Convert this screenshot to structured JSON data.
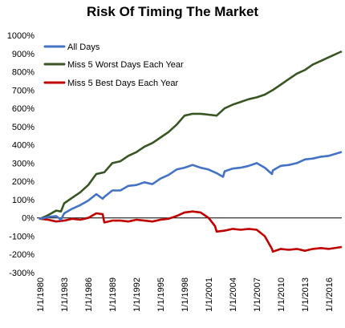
{
  "chart_data": {
    "type": "line",
    "title": "Risk Of Timing The Market",
    "xlabel": "",
    "ylabel": "",
    "ylim": [
      -300,
      1000
    ],
    "y_ticks": [
      -300,
      -200,
      -100,
      0,
      100,
      200,
      300,
      400,
      500,
      600,
      700,
      800,
      900,
      1000
    ],
    "y_tick_labels": [
      "-300%",
      "-200%",
      "-100%",
      "0%",
      "100%",
      "200%",
      "300%",
      "400%",
      "500%",
      "600%",
      "700%",
      "800%",
      "900%",
      "1000%"
    ],
    "x_tick_labels": [
      "1/1/1980",
      "1/1/1983",
      "1/1/1986",
      "1/1/1989",
      "1/1/1992",
      "1/1/1995",
      "1/1/1998",
      "1/1/2001",
      "1/1/2004",
      "1/1/2007",
      "1/1/2010",
      "1/1/2013",
      "1/1/2016"
    ],
    "xlim": [
      1980,
      2017.6
    ],
    "grid": false,
    "legend_position": "top-left",
    "series": [
      {
        "name": "All Days",
        "color": "#4472C4",
        "x": [
          1980,
          1981,
          1982,
          1982.6,
          1983,
          1984,
          1985,
          1986,
          1987,
          1987.8,
          1988,
          1989,
          1990,
          1991,
          1992,
          1993,
          1994,
          1995,
          1996,
          1997,
          1998,
          1999,
          2000,
          2001,
          2002,
          2002.8,
          2003,
          2004,
          2005,
          2006,
          2007,
          2008,
          2008.9,
          2009,
          2010,
          2011,
          2012,
          2013,
          2014,
          2015,
          2016,
          2017.5
        ],
        "y": [
          -5,
          5,
          10,
          -10,
          25,
          50,
          70,
          95,
          130,
          105,
          115,
          150,
          150,
          175,
          180,
          195,
          185,
          215,
          235,
          265,
          275,
          290,
          275,
          265,
          245,
          225,
          255,
          270,
          275,
          285,
          300,
          275,
          240,
          260,
          285,
          290,
          300,
          320,
          325,
          335,
          340,
          360
        ]
      },
      {
        "name": "Miss 5 Worst Days Each Year",
        "color": "#375623",
        "x": [
          1980,
          1981,
          1982,
          1982.6,
          1983,
          1984,
          1985,
          1986,
          1987,
          1988,
          1989,
          1990,
          1991,
          1992,
          1993,
          1994,
          1995,
          1996,
          1997,
          1998,
          1999,
          2000,
          2001,
          2002,
          2003,
          2004,
          2005,
          2006,
          2007,
          2008,
          2009,
          2010,
          2011,
          2012,
          2013,
          2014,
          2015,
          2016,
          2017.5
        ],
        "y": [
          -5,
          15,
          40,
          35,
          80,
          110,
          140,
          180,
          240,
          250,
          300,
          310,
          340,
          360,
          390,
          410,
          440,
          470,
          510,
          560,
          570,
          570,
          565,
          560,
          600,
          620,
          635,
          650,
          660,
          675,
          700,
          730,
          760,
          790,
          810,
          840,
          860,
          880,
          910
        ]
      },
      {
        "name": "Miss 5 Best Days Each Year",
        "color": "#C00000",
        "x": [
          1980,
          1981,
          1982,
          1983,
          1984,
          1985,
          1986,
          1987,
          1987.8,
          1988,
          1989,
          1990,
          1991,
          1992,
          1993,
          1994,
          1995,
          1996,
          1997,
          1998,
          1999,
          2000,
          2001,
          2001.8,
          2002,
          2003,
          2004,
          2005,
          2006,
          2007,
          2008,
          2008.9,
          2009,
          2010,
          2011,
          2012,
          2013,
          2014,
          2015,
          2016,
          2017.5
        ],
        "y": [
          -5,
          -10,
          -20,
          -15,
          -5,
          -10,
          0,
          25,
          20,
          -25,
          -15,
          -15,
          -20,
          -10,
          -15,
          -20,
          -10,
          -5,
          10,
          30,
          35,
          30,
          0,
          -45,
          -75,
          -70,
          -60,
          -65,
          -60,
          -65,
          -100,
          -170,
          -185,
          -170,
          -175,
          -170,
          -180,
          -170,
          -165,
          -170,
          -160
        ]
      }
    ]
  }
}
